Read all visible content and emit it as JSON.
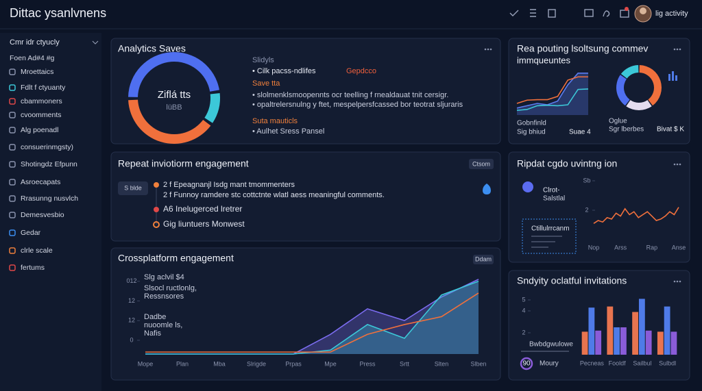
{
  "header": {
    "title": "Dittac ysanlvnens",
    "user": "lig activity"
  },
  "sidebar": {
    "heading": "Cmr idr ctyucly",
    "items": [
      "Foen Ad#4 #g",
      "Mroettaics",
      "Fdlt f ctyuanty",
      "cbammoners",
      "cvoomments",
      "Alg poenadl",
      "consuerinmgsty)",
      "Shotingdz Efpunn",
      "Asroecapats",
      "Rrasunng nusvlch",
      "Demesvesbio",
      "Gedar",
      "clrle scale",
      "fertums"
    ]
  },
  "engagement": {
    "title": "Repeat inviotiorm engagement",
    "button": "Ctsom",
    "badge": "S blde",
    "items": [
      "2 f Epeagnanjl Isdg mant tmommenters",
      "2 f Funnoy ramdere stc cottctnte wlatl aess meaningful comments.",
      "A6 Inelugerced lretrer",
      "Gig liuntuers Monwest"
    ]
  },
  "chart_data": [
    {
      "type": "pie",
      "title": "Analytics Saves",
      "values": [
        12,
        40,
        48
      ],
      "colors": [
        "#3cc8d8",
        "#f0703c",
        "#4f6ff0"
      ],
      "center_text": [
        "Ziflá tts",
        "lüBB"
      ],
      "notes": [
        "Slidyls",
        "• Cilk pacss-ndlifes",
        "Gepdcco",
        "Save tta",
        "• slolmenklsmoopennts ocr teelling f rnealdauat tnit cersigr.",
        "• opaltrelersnulng y ftet, mespelpersfcassed bor teotrat sljuraris",
        "Suta mauticls",
        "• Aulhet Sress Pansel"
      ]
    },
    {
      "type": "line",
      "title": "Rea pouting lsoltsung commev",
      "subtitle": "immqueuntes",
      "categories": [
        null,
        null,
        null,
        null,
        null,
        null,
        null,
        null
      ],
      "series": [
        {
          "color": "#5b7cf0",
          "fill": true,
          "values": [
            1.5,
            2,
            2.5,
            2.2,
            3,
            6.5,
            9,
            9
          ]
        },
        {
          "color": "#f0703c",
          "fill": false,
          "values": [
            2.5,
            3.2,
            3.3,
            3.3,
            4,
            7.5,
            8.2,
            8.2
          ]
        },
        {
          "color": "#3cc8d8",
          "fill": false,
          "values": [
            1,
            1.2,
            2,
            2.1,
            2,
            2.2,
            5.5,
            5.6
          ]
        }
      ],
      "ylim": [
        0,
        10
      ],
      "notes": [
        "Gobnfinld",
        "Sig bhiud",
        "Suae 4"
      ]
    },
    {
      "type": "pie",
      "values": [
        40,
        20,
        25,
        15
      ],
      "colors": [
        "#f0703c",
        "#e4dcef",
        "#4f6ff0",
        "#3cc8d8"
      ],
      "notes": [
        "Oglue",
        "Sgr lberbes",
        "Bivat $ K"
      ]
    },
    {
      "type": "line",
      "title": "Ripdat cgdo uvintng ion",
      "categories": [
        "Nop",
        null,
        null,
        null,
        null,
        null,
        "Arss",
        null,
        null,
        null,
        null,
        null,
        null,
        "Rap",
        null,
        null,
        null,
        null,
        null,
        "Anse"
      ],
      "series": [
        {
          "color": "#f0703c",
          "fill": false,
          "values": [
            1.1,
            1.3,
            1.2,
            1.5,
            1.4,
            1.8,
            1.6,
            2.1,
            1.7,
            1.9,
            1.5,
            1.7,
            1.9,
            1.6,
            1.3,
            1.4,
            1.6,
            1.9,
            1.7,
            2.2
          ]
        }
      ],
      "ylim": [
        0,
        4
      ],
      "yticks": [
        {
          "value": 4,
          "label": "Sb"
        },
        2
      ],
      "notes": [
        "Clrot-",
        "Salstlal",
        "Ctillulrrcanm"
      ]
    },
    {
      "type": "area",
      "title": "Crossplatform engagement",
      "button": "Ddam",
      "categories": [
        "Mope",
        "Plan",
        "Mba",
        "Slrigde",
        "Prpas",
        "Mpe",
        "Press",
        "Srtt",
        "Slten",
        "Slben"
      ],
      "series": [
        {
          "color": "#7b6cf0",
          "fill": true,
          "values": [
            -7,
            -7,
            -7,
            -7,
            -7,
            3,
            16,
            10,
            22,
            31
          ]
        },
        {
          "color": "#3cc8d8",
          "fill": true,
          "values": [
            -7,
            -7,
            -7,
            -7,
            -7,
            -5,
            8,
            1,
            23,
            30
          ]
        },
        {
          "color": "#f0703c",
          "fill": false,
          "values": [
            -6,
            -6,
            -6,
            -6,
            -6,
            -6,
            3,
            8,
            12,
            24
          ]
        }
      ],
      "ylim": [
        -7,
        32
      ],
      "yticks": [
        0,
        {
          "value": 10,
          "label": "12"
        },
        {
          "value": 20,
          "label": "12"
        },
        {
          "value": 30,
          "label": "012"
        }
      ],
      "notes": [
        "Slg aclvil $4",
        "Slsocl ructlonlg,",
        "Ressnsores",
        "Dadbe",
        "nuoomle ls,",
        "Nafis"
      ]
    },
    {
      "type": "bar",
      "title": "Sndyity oclatful invitations",
      "categories": [
        "Pecneas",
        "Fooldf",
        "Sailbul",
        "Sulbdl"
      ],
      "series": [
        {
          "color": "#e8744f",
          "values": [
            2.1,
            4.4,
            3.9,
            2.1
          ]
        },
        {
          "color": "#4f7be8",
          "values": [
            4.3,
            2.5,
            5.1,
            4.4
          ]
        },
        {
          "color": "#8a5cd8",
          "values": [
            2.2,
            2.5,
            2.2,
            2.1
          ]
        }
      ],
      "ylim": [
        0,
        5.5
      ],
      "yticks": [
        2,
        4,
        5
      ],
      "notes": [
        "Bwbdgwulowe",
        "90",
        "Moury"
      ]
    }
  ]
}
